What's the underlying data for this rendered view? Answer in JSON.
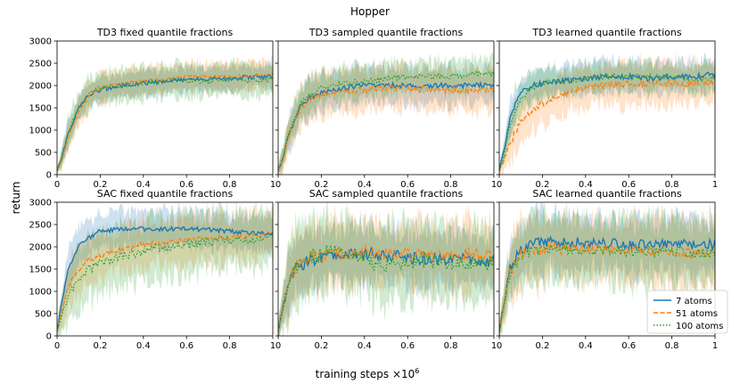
{
  "figure": {
    "suptitle": "Hopper",
    "xlabel": "training steps ×10",
    "xlabel_exp": "6",
    "ylabel": "return"
  },
  "colors": {
    "7 atoms": "#1f77b4",
    "51 atoms": "#ff7f0e",
    "100 atoms": "#2ca02c"
  },
  "legend": {
    "placement": "lower-right of SAC learned quantile fractions panel",
    "entries": [
      {
        "label": "7 atoms",
        "style": "solid",
        "color": "#1f77b4"
      },
      {
        "label": "51 atoms",
        "style": "dashed",
        "color": "#ff7f0e"
      },
      {
        "label": "100 atoms",
        "style": "dotted",
        "color": "#2ca02c"
      }
    ]
  },
  "chart_data": [
    {
      "type": "line",
      "title": "TD3 fixed quantile fractions",
      "xlim": [
        0,
        1
      ],
      "ylim": [
        0,
        3000
      ],
      "xticks": [
        0,
        0.2,
        0.4,
        0.6,
        0.8,
        1
      ],
      "xtick_labels": [
        "0",
        "0.2",
        "0.4",
        "0.6",
        "0.8",
        "1"
      ],
      "yticks": [
        0,
        500,
        1000,
        1500,
        2000,
        2500,
        3000
      ],
      "ytick_labels": [
        "0",
        "500",
        "1000",
        "1500",
        "2000",
        "2500",
        "3000"
      ],
      "x": [
        0,
        0.02,
        0.05,
        0.1,
        0.15,
        0.2,
        0.3,
        0.4,
        0.5,
        0.6,
        0.7,
        0.8,
        0.9,
        1.0
      ],
      "series": [
        {
          "name": "7 atoms",
          "values": [
            100,
            350,
            900,
            1500,
            1800,
            1900,
            2000,
            2050,
            2100,
            2150,
            2150,
            2150,
            2200,
            2200
          ],
          "band": 250,
          "noise": 50
        },
        {
          "name": "51 atoms",
          "values": [
            100,
            300,
            800,
            1400,
            1800,
            1950,
            2050,
            2100,
            2150,
            2200,
            2200,
            2200,
            2230,
            2250
          ],
          "band": 300,
          "noise": 30
        },
        {
          "name": "100 atoms",
          "values": [
            100,
            350,
            900,
            1500,
            1850,
            1950,
            2000,
            2050,
            2100,
            2100,
            2100,
            2150,
            2100,
            2150
          ],
          "band": 350,
          "noise": 50
        }
      ]
    },
    {
      "type": "line",
      "title": "TD3 sampled quantile fractions",
      "xlim": [
        0,
        1
      ],
      "ylim": [
        0,
        3000
      ],
      "xticks": [
        0,
        0.2,
        0.4,
        0.6,
        0.8,
        1
      ],
      "xtick_labels": [
        "0",
        "0.2",
        "0.4",
        "0.6",
        "0.8",
        "1"
      ],
      "yticks": [
        0,
        500,
        1000,
        1500,
        2000,
        2500,
        3000
      ],
      "ytick_labels": [],
      "x": [
        0,
        0.02,
        0.05,
        0.1,
        0.15,
        0.2,
        0.3,
        0.4,
        0.5,
        0.6,
        0.7,
        0.8,
        0.9,
        1.0
      ],
      "series": [
        {
          "name": "7 atoms",
          "values": [
            100,
            300,
            900,
            1500,
            1750,
            1850,
            1950,
            2000,
            2000,
            2000,
            2000,
            2000,
            2000,
            2000
          ],
          "band": 400,
          "noise": 60
        },
        {
          "name": "51 atoms",
          "values": [
            100,
            300,
            850,
            1450,
            1700,
            1800,
            1850,
            1900,
            1950,
            1950,
            1900,
            1900,
            1900,
            1900
          ],
          "band": 450,
          "noise": 70
        },
        {
          "name": "100 atoms",
          "values": [
            100,
            350,
            950,
            1550,
            1800,
            1950,
            2050,
            2100,
            2150,
            2200,
            2200,
            2200,
            2250,
            2250
          ],
          "band": 350,
          "noise": 60
        }
      ]
    },
    {
      "type": "line",
      "title": "TD3 learned quantile fractions",
      "xlim": [
        0,
        1
      ],
      "ylim": [
        0,
        3000
      ],
      "xticks": [
        0,
        0.2,
        0.4,
        0.6,
        0.8,
        1
      ],
      "xtick_labels": [
        "0",
        "0.2",
        "0.4",
        "0.6",
        "0.8",
        "1"
      ],
      "yticks": [
        0,
        500,
        1000,
        1500,
        2000,
        2500,
        3000
      ],
      "ytick_labels": [],
      "x": [
        0,
        0.02,
        0.05,
        0.1,
        0.15,
        0.2,
        0.3,
        0.4,
        0.5,
        0.6,
        0.7,
        0.8,
        0.9,
        1.0
      ],
      "series": [
        {
          "name": "7 atoms",
          "values": [
            100,
            500,
            1300,
            1850,
            2000,
            2050,
            2100,
            2150,
            2200,
            2200,
            2150,
            2200,
            2200,
            2250
          ],
          "band": 350,
          "noise": 60
        },
        {
          "name": "51 atoms",
          "values": [
            100,
            300,
            700,
            1200,
            1450,
            1600,
            1800,
            1950,
            2000,
            2050,
            2050,
            2050,
            2050,
            2100
          ],
          "band": 450,
          "noise": 80
        },
        {
          "name": "100 atoms",
          "values": [
            100,
            400,
            1100,
            1700,
            1950,
            2050,
            2100,
            2150,
            2200,
            2200,
            2200,
            2200,
            2150,
            2150
          ],
          "band": 300,
          "noise": 60
        }
      ]
    },
    {
      "type": "line",
      "title": "SAC fixed quantile fractions",
      "xlim": [
        0,
        1
      ],
      "ylim": [
        0,
        3000
      ],
      "xticks": [
        0,
        0.2,
        0.4,
        0.6,
        0.8,
        1
      ],
      "xtick_labels": [
        "0",
        "0.2",
        "0.4",
        "0.6",
        "0.8",
        "1"
      ],
      "yticks": [
        0,
        500,
        1000,
        1500,
        2000,
        2500,
        3000
      ],
      "ytick_labels": [
        "0",
        "500",
        "1000",
        "1500",
        "2000",
        "2500",
        "3000"
      ],
      "x": [
        0,
        0.02,
        0.05,
        0.1,
        0.15,
        0.2,
        0.3,
        0.4,
        0.5,
        0.6,
        0.7,
        0.8,
        0.9,
        1.0
      ],
      "series": [
        {
          "name": "7 atoms",
          "values": [
            100,
            700,
            1500,
            2000,
            2200,
            2350,
            2400,
            2400,
            2400,
            2400,
            2380,
            2350,
            2300,
            2300
          ],
          "band": 400,
          "noise": 50
        },
        {
          "name": "51 atoms",
          "values": [
            100,
            500,
            1100,
            1500,
            1700,
            1800,
            1950,
            2050,
            2100,
            2150,
            2200,
            2200,
            2250,
            2300
          ],
          "band": 500,
          "noise": 50
        },
        {
          "name": "100 atoms",
          "values": [
            100,
            400,
            900,
            1300,
            1500,
            1650,
            1800,
            1900,
            2000,
            2050,
            2100,
            2150,
            2150,
            2200
          ],
          "band": 650,
          "noise": 100
        }
      ]
    },
    {
      "type": "line",
      "title": "SAC sampled quantile fractions",
      "xlim": [
        0,
        1
      ],
      "ylim": [
        0,
        3000
      ],
      "xticks": [
        0,
        0.2,
        0.4,
        0.6,
        0.8,
        1
      ],
      "xtick_labels": [
        "0",
        "0.2",
        "0.4",
        "0.6",
        "0.8",
        "1"
      ],
      "yticks": [
        0,
        500,
        1000,
        1500,
        2000,
        2500,
        3000
      ],
      "ytick_labels": [],
      "x": [
        0,
        0.02,
        0.05,
        0.1,
        0.15,
        0.2,
        0.3,
        0.4,
        0.5,
        0.6,
        0.7,
        0.8,
        0.9,
        1.0
      ],
      "series": [
        {
          "name": "7 atoms",
          "values": [
            100,
            600,
            1300,
            1600,
            1700,
            1750,
            1800,
            1850,
            1800,
            1750,
            1750,
            1700,
            1700,
            1650
          ],
          "band": 600,
          "noise": 150
        },
        {
          "name": "51 atoms",
          "values": [
            100,
            600,
            1300,
            1650,
            1750,
            1800,
            1850,
            1900,
            1850,
            1800,
            1800,
            1800,
            1850,
            1800
          ],
          "band": 700,
          "noise": 150
        },
        {
          "name": "100 atoms",
          "values": [
            100,
            600,
            1300,
            1650,
            1750,
            1850,
            1900,
            1700,
            1600,
            1650,
            1700,
            1650,
            1600,
            1650
          ],
          "band": 800,
          "noise": 180
        }
      ]
    },
    {
      "type": "line",
      "title": "SAC learned quantile fractions",
      "xlim": [
        0,
        1
      ],
      "ylim": [
        0,
        3000
      ],
      "xticks": [
        0,
        0.2,
        0.4,
        0.6,
        0.8,
        1
      ],
      "xtick_labels": [
        "0",
        "0.2",
        "0.4",
        "0.6",
        "0.8",
        "1"
      ],
      "yticks": [
        0,
        500,
        1000,
        1500,
        2000,
        2500,
        3000
      ],
      "ytick_labels": [],
      "x": [
        0,
        0.02,
        0.05,
        0.1,
        0.15,
        0.2,
        0.3,
        0.4,
        0.5,
        0.6,
        0.7,
        0.8,
        0.9,
        1.0
      ],
      "series": [
        {
          "name": "7 atoms",
          "values": [
            100,
            700,
            1500,
            1950,
            2050,
            2100,
            2100,
            2100,
            2100,
            2050,
            2050,
            2050,
            2050,
            2050
          ],
          "band": 600,
          "noise": 120
        },
        {
          "name": "51 atoms",
          "values": [
            100,
            650,
            1400,
            1850,
            1900,
            1950,
            1950,
            1950,
            1950,
            1900,
            1900,
            1900,
            1850,
            1850
          ],
          "band": 700,
          "noise": 120
        },
        {
          "name": "100 atoms",
          "values": [
            100,
            650,
            1400,
            1800,
            1900,
            1950,
            1950,
            1900,
            1900,
            1900,
            1900,
            1900,
            1850,
            1850
          ],
          "band": 700,
          "noise": 120
        }
      ]
    }
  ]
}
